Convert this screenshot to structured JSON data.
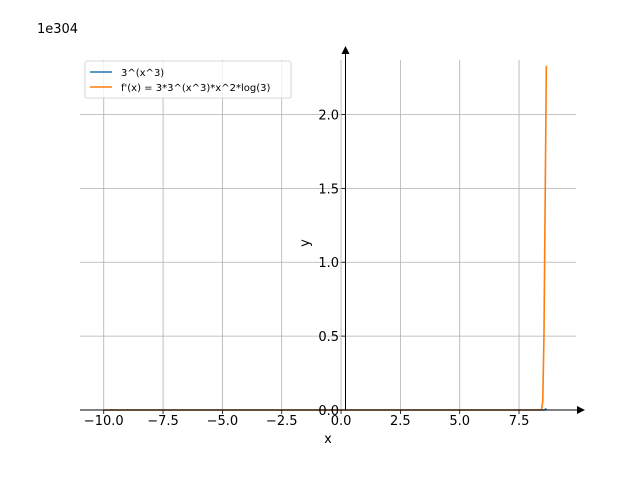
{
  "chart_data": {
    "type": "line",
    "title": "",
    "xlabel": "x",
    "ylabel": "y",
    "y_offset_text": "1e304",
    "xlim": [
      -11,
      9.9
    ],
    "ylim": [
      0,
      2.45
    ],
    "grid": true,
    "legend_position": "top-left",
    "x_ticks": [
      -10.0,
      -7.5,
      -5.0,
      -2.5,
      0.0,
      2.5,
      5.0,
      7.5
    ],
    "x_tick_labels": [
      "−10.0",
      "−7.5",
      "−5.0",
      "−2.5",
      "0.0",
      "2.5",
      "5.0",
      "7.5"
    ],
    "y_ticks": [
      0.0,
      0.5,
      1.0,
      1.5,
      2.0
    ],
    "y_tick_labels": [
      "0.0",
      "0.5",
      "1.0",
      "1.5",
      "2.0"
    ],
    "series": [
      {
        "name": "3^(x^3)",
        "color": "#1f77b4",
        "x": [
          -10,
          -7.5,
          -5,
          -2.5,
          0,
          2.5,
          5,
          7.5,
          8.4,
          8.55,
          8.6,
          8.65
        ],
        "y": [
          0,
          0,
          0,
          0,
          0,
          0,
          0,
          0,
          0,
          0,
          0.003,
          0.01
        ]
      },
      {
        "name": "f'(x) = 3*3^(x^3)*x^2*log(3)",
        "color": "#ff7f0e",
        "x": [
          -10,
          -7.5,
          -5,
          -2.5,
          0,
          2.5,
          5,
          7.5,
          8.4,
          8.45,
          8.5,
          8.55,
          8.6,
          8.65
        ],
        "y": [
          0,
          0,
          0,
          0,
          0,
          0,
          0,
          0,
          0,
          0.004,
          0.06,
          0.5,
          1.4,
          2.33
        ]
      }
    ]
  }
}
